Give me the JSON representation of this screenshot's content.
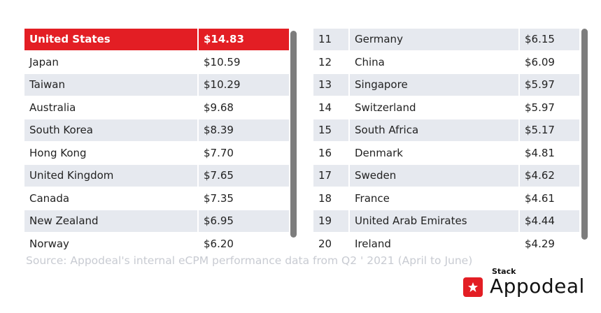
{
  "left_table": {
    "rows": [
      [
        "United States",
        "$14.83"
      ],
      [
        "Japan",
        "$10.59"
      ],
      [
        "Taiwan",
        "$10.29"
      ],
      [
        "Australia",
        "$9.68"
      ],
      [
        "South Korea",
        "$8.39"
      ],
      [
        "Hong Kong",
        "$7.70"
      ],
      [
        "United Kingdom",
        "$7.65"
      ],
      [
        "Canada",
        "$7.35"
      ],
      [
        "New Zealand",
        "$6.95"
      ],
      [
        "Norway",
        "$6.20"
      ]
    ]
  },
  "right_table": {
    "rows": [
      [
        "11",
        "Germany",
        "$6.15"
      ],
      [
        "12",
        "China",
        "$6.09"
      ],
      [
        "13",
        "Singapore",
        "$5.97"
      ],
      [
        "14",
        "Switzerland",
        "$5.97"
      ],
      [
        "15",
        "South Africa",
        "$5.17"
      ],
      [
        "16",
        "Denmark",
        "$4.81"
      ],
      [
        "17",
        "Sweden",
        "$4.62"
      ],
      [
        "18",
        "France",
        "$4.61"
      ],
      [
        "19",
        "United Arab Emirates",
        "$4.44"
      ],
      [
        "20",
        "Ireland",
        "$4.29"
      ]
    ]
  },
  "source": "Source: Appodeal's internal eCPM performance data from Q2 ' 2021 (April to June)",
  "logo": {
    "small": "Stack",
    "name": "Appodeal"
  }
}
